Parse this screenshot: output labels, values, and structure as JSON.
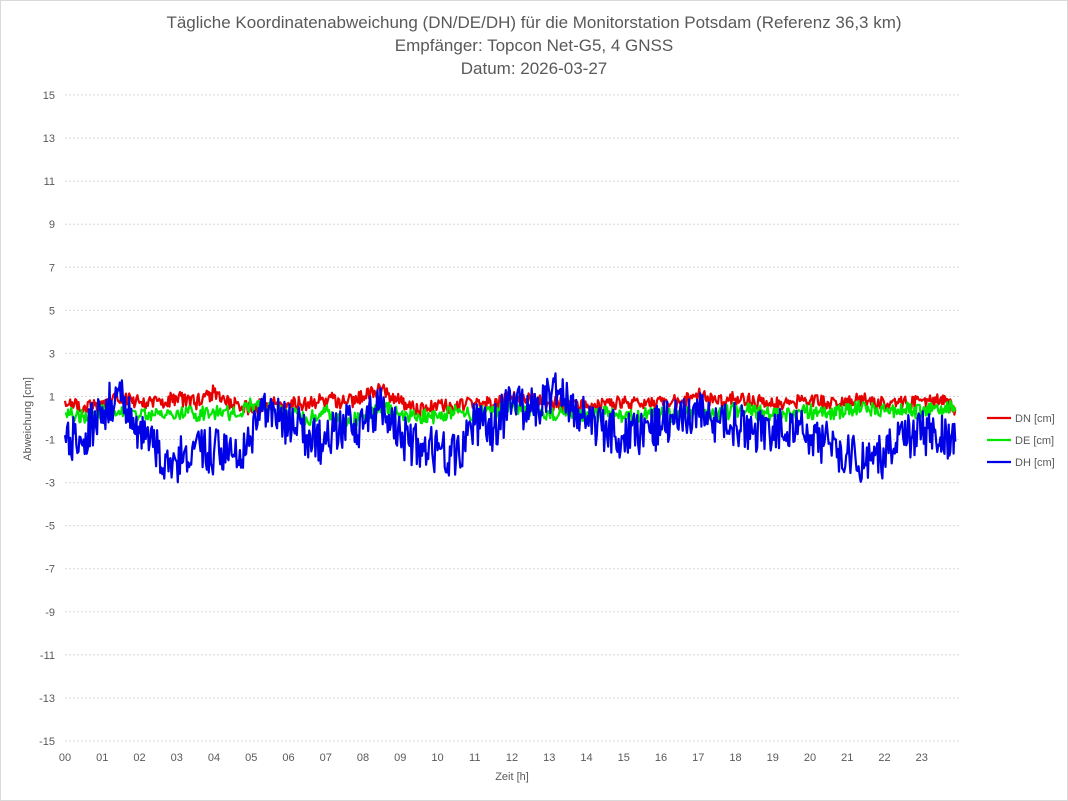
{
  "chart_data": {
    "type": "line",
    "title_lines": [
      "Tägliche Koordinatenabweichung (DN/DE/DH) für die Monitorstation Potsdam (Referenz 36,3 km)",
      "Empfänger: Topcon Net-G5, 4 GNSS",
      "Datum: 2026-03-27"
    ],
    "xlabel": "Zeit [h]",
    "ylabel": "Abweichung [cm]",
    "xlim": [
      0,
      24
    ],
    "ylim": [
      -15,
      15
    ],
    "x_ticks": [
      "00",
      "01",
      "02",
      "03",
      "04",
      "05",
      "06",
      "07",
      "08",
      "09",
      "10",
      "11",
      "12",
      "13",
      "14",
      "15",
      "16",
      "17",
      "18",
      "19",
      "20",
      "21",
      "22",
      "23"
    ],
    "y_ticks": [
      15,
      13,
      11,
      9,
      7,
      5,
      3,
      1,
      -1,
      -3,
      -5,
      -7,
      -9,
      -11,
      -13,
      -15
    ],
    "grid": "horizontal dotted",
    "legend_position": "right",
    "x": [
      0,
      0.5,
      1,
      1.5,
      2,
      2.5,
      3,
      3.5,
      4,
      4.5,
      5,
      5.5,
      6,
      6.5,
      7,
      7.5,
      8,
      8.5,
      9,
      9.5,
      10,
      10.5,
      11,
      11.5,
      12,
      12.5,
      13,
      13.5,
      14,
      14.5,
      15,
      15.5,
      16,
      16.5,
      17,
      17.5,
      18,
      18.5,
      19,
      19.5,
      20,
      20.5,
      21,
      21.5,
      22,
      22.5,
      23,
      23.5,
      23.9
    ],
    "series": [
      {
        "name": "DN [cm]",
        "color": "#e60000",
        "values": [
          0.8,
          0.5,
          0.6,
          0.9,
          0.7,
          0.8,
          0.9,
          0.7,
          1.2,
          0.6,
          0.5,
          0.6,
          0.7,
          0.6,
          0.9,
          0.7,
          1.0,
          1.3,
          0.8,
          0.3,
          0.6,
          0.5,
          0.7,
          0.6,
          1.0,
          0.8,
          0.7,
          0.6,
          0.5,
          0.6,
          0.7,
          0.6,
          0.8,
          0.7,
          1.1,
          0.7,
          0.9,
          0.8,
          0.6,
          0.7,
          0.8,
          0.7,
          0.9,
          0.8,
          0.6,
          0.7,
          0.8,
          0.9,
          0.4
        ]
      },
      {
        "name": "DE [cm]",
        "color": "#00e600",
        "values": [
          0.2,
          0.1,
          0.3,
          0.2,
          0.1,
          0.2,
          0.3,
          0.2,
          0.3,
          0.2,
          0.6,
          0.4,
          0.2,
          -0.1,
          0.4,
          -0.3,
          0.1,
          0.5,
          0.2,
          0.1,
          0.0,
          0.4,
          0.2,
          0.3,
          0.5,
          0.4,
          0.2,
          0.3,
          0.1,
          0.2,
          0.0,
          0.1,
          0.2,
          0.1,
          0.3,
          0.1,
          0.4,
          0.3,
          0.1,
          0.2,
          0.3,
          0.2,
          0.4,
          0.5,
          0.3,
          0.4,
          0.3,
          0.4,
          0.5
        ]
      },
      {
        "name": "DH [cm]",
        "color": "#0000e6",
        "values": [
          -0.8,
          -1.0,
          0.5,
          0.8,
          -0.7,
          -1.6,
          -2.0,
          -1.2,
          -1.6,
          -1.8,
          -1.0,
          0.5,
          -0.3,
          -0.8,
          -1.2,
          -0.3,
          -0.5,
          0.6,
          -0.8,
          -1.4,
          -1.5,
          -1.9,
          -0.3,
          -0.5,
          0.6,
          0.3,
          1.2,
          0.8,
          -0.2,
          -0.6,
          -0.8,
          -0.6,
          -0.4,
          0.2,
          0.4,
          -0.1,
          -0.3,
          -0.6,
          -0.4,
          -0.2,
          -0.8,
          -1.2,
          -1.6,
          -2.2,
          -1.8,
          -0.9,
          -0.6,
          -0.9,
          -1.1
        ]
      }
    ]
  }
}
